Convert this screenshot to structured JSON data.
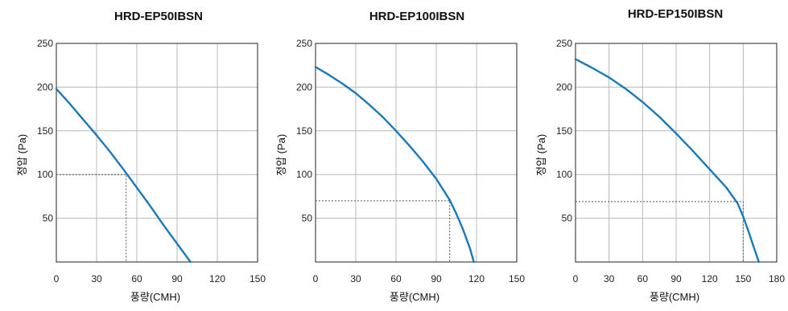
{
  "chart_data": [
    {
      "type": "line",
      "title": "HRD-EP50IBSN",
      "xlabel": "풍량(CMH)",
      "ylabel": "정압 (Pa)",
      "xlim": [
        0,
        150
      ],
      "ylim": [
        0,
        250
      ],
      "xticks": [
        0,
        30,
        60,
        90,
        120,
        150
      ],
      "yticks": [
        50,
        100,
        150,
        200,
        250
      ],
      "grid": true,
      "line_color": "#1a7ab8",
      "series": [
        {
          "x": [
            0,
            10,
            20,
            30,
            40,
            50,
            60,
            70,
            80,
            90,
            100
          ],
          "y": [
            198,
            181,
            163,
            145,
            126,
            106,
            85,
            64,
            42,
            21,
            0
          ]
        }
      ],
      "operating_point": {
        "x": 52,
        "y": 100
      }
    },
    {
      "type": "line",
      "title": "HRD-EP100IBSN",
      "xlabel": "풍량(CMH)",
      "ylabel": "정압 (Pa)",
      "xlim": [
        0,
        150
      ],
      "ylim": [
        0,
        250
      ],
      "xticks": [
        0,
        30,
        60,
        90,
        120,
        150
      ],
      "yticks": [
        50,
        100,
        150,
        200,
        250
      ],
      "grid": true,
      "line_color": "#1a7ab8",
      "series": [
        {
          "x": [
            0,
            10,
            20,
            30,
            40,
            50,
            60,
            70,
            80,
            90,
            100,
            105,
            110,
            115,
            118
          ],
          "y": [
            223,
            214,
            204,
            193,
            180,
            166,
            150,
            133,
            115,
            95,
            71,
            55,
            37,
            16,
            0
          ]
        }
      ],
      "operating_point": {
        "x": 100,
        "y": 70
      }
    },
    {
      "type": "line",
      "title": "HRD-EP150IBSN",
      "xlabel": "풍량(CMH)",
      "ylabel": "정압 (Pa)",
      "xlim": [
        0,
        180
      ],
      "ylim": [
        0,
        250
      ],
      "xticks": [
        0,
        30,
        60,
        90,
        120,
        150,
        180
      ],
      "yticks": [
        50,
        100,
        150,
        200,
        250
      ],
      "grid": true,
      "line_color": "#1a7ab8",
      "series": [
        {
          "x": [
            0,
            15,
            30,
            45,
            60,
            75,
            90,
            105,
            120,
            135,
            145,
            150,
            155,
            160,
            164
          ],
          "y": [
            232,
            222,
            211,
            198,
            183,
            166,
            147,
            127,
            106,
            85,
            67,
            52,
            34,
            15,
            0
          ]
        }
      ],
      "operating_point": {
        "x": 150,
        "y": 69
      }
    }
  ]
}
